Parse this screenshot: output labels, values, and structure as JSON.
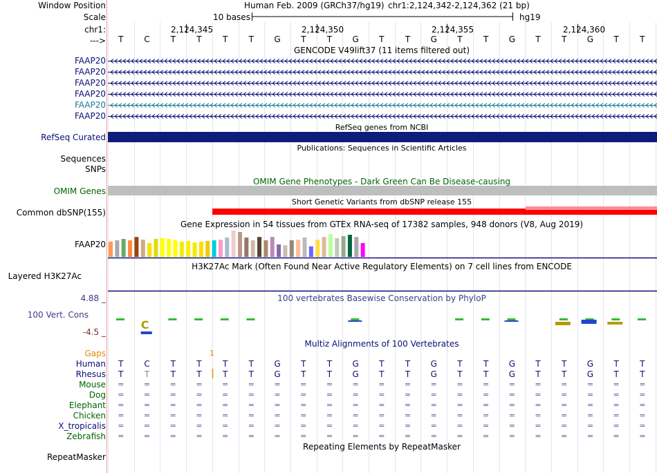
{
  "header": {
    "labels": [
      "Window Position",
      "Scale",
      "chr1:",
      "--->"
    ],
    "assembly": "Human Feb. 2009 (GRCh37/hg19)",
    "position": "chr1:2,124,342-2,124,362 (21 bp)",
    "scale_text": "10 bases",
    "scale_db": "hg19",
    "ticks": [
      "2,124,345",
      "2,124,350",
      "2,124,355",
      "2,124,360"
    ]
  },
  "sequence": [
    "T",
    "C",
    "T",
    "T",
    "T",
    "T",
    "G",
    "T",
    "T",
    "G",
    "T",
    "T",
    "G",
    "T",
    "T",
    "G",
    "T",
    "T",
    "G",
    "T",
    "T"
  ],
  "gencode": {
    "title": "GENCODE V49lift37 (11 items filtered out)",
    "items": [
      "FAAP20",
      "FAAP20",
      "FAAP20",
      "FAAP20",
      "FAAP20",
      "FAAP20"
    ]
  },
  "refseq": {
    "label": "RefSeq Curated",
    "title": "RefSeq genes from NCBI"
  },
  "publications": {
    "title": "Publications: Sequences in Scientific Articles"
  },
  "pub_labels": [
    "Sequences",
    "SNPs"
  ],
  "omim": {
    "label": "OMIM Genes",
    "title": "OMIM Gene Phenotypes - Dark Green Can Be Disease-causing"
  },
  "dbsnp": {
    "label": "Common dbSNP(155)",
    "title": "Short Genetic Variants from dbSNP release 155"
  },
  "gtex": {
    "label": "FAAP20",
    "title": "Gene Expression in 54 tissues from GTEx RNA-seq of 17382 samples, 948 donors (V8, Aug 2019)",
    "colors": [
      "#ff9955",
      "#aaaaaa",
      "#66aa66",
      "#ff8844",
      "#994411",
      "#ccaa88",
      "#ffdd00",
      "#dddd00",
      "#ffff00",
      "#ffff00",
      "#ffff00",
      "#eeee00",
      "#ffee00",
      "#eeee00",
      "#ffdd00",
      "#eecc00",
      "#00ccdd",
      "#ff99cc",
      "#aabbcc",
      "#eecccc",
      "#bb9988",
      "#997766",
      "#ccbbaa",
      "#554433",
      "#aa8866",
      "#bb88bb",
      "#8866aa",
      "#ccbbaa",
      "#998877",
      "#ffbb99",
      "#bbbbbb",
      "#6666ff",
      "#ffdd44",
      "#ddbb99",
      "#bbff99",
      "#bbccbb",
      "#99aa88",
      "#006644",
      "#aaaaaa",
      "#ff00ff"
    ],
    "values": [
      0.55,
      0.6,
      0.65,
      0.6,
      0.72,
      0.62,
      0.5,
      0.65,
      0.68,
      0.65,
      0.6,
      0.55,
      0.58,
      0.52,
      0.55,
      0.58,
      0.6,
      0.62,
      0.7,
      0.95,
      0.9,
      0.7,
      0.6,
      0.72,
      0.6,
      0.72,
      0.45,
      0.42,
      0.6,
      0.62,
      0.7,
      0.38,
      0.62,
      0.72,
      0.82,
      0.68,
      0.75,
      0.8,
      0.72,
      0.5
    ]
  },
  "h3k27ac": {
    "label": "Layered H3K27Ac",
    "title": "H3K27Ac Mark (Often Found Near Active Regulatory Elements) on 7 cell lines from ENCODE"
  },
  "conservation": {
    "label": "100 Vert. Cons",
    "max": "4.88 _",
    "min": "-4.5 _",
    "title": "100 vertebrates Basewise Conservation by PhyloP"
  },
  "multiz": {
    "title": "Multiz Alignments of 100 Vertebrates",
    "gaps_label": "Gaps",
    "gap_value": "1",
    "species": [
      "Human",
      "Rhesus",
      "Mouse",
      "Dog",
      "Elephant",
      "Chicken",
      "X_tropicalis",
      "Zebrafish"
    ],
    "rhesus": [
      "T",
      "T",
      "T",
      "T",
      "T",
      "T",
      "G",
      "T",
      "T",
      "G",
      "T",
      "T",
      "G",
      "T",
      "T",
      "G",
      "T",
      "T",
      "G",
      "T",
      "T"
    ]
  },
  "repeatmasker": {
    "label": "RepeatMasker",
    "title": "Repeating Elements by RepeatMasker"
  },
  "colors": {
    "navy": "#0c0c78",
    "refseq_bar": "#0c1d7a",
    "omim_bar": "#bebebe",
    "dbsnp_red": "#ff0000",
    "dbsnp_pink": "#ff8c8c",
    "gridline": "#e4e4ec",
    "separator": "#e9a0a0"
  }
}
